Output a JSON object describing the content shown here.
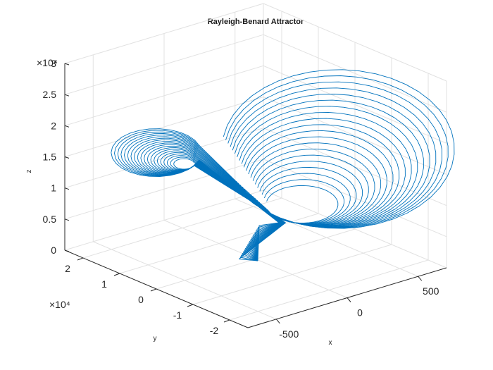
{
  "chart_data": {
    "type": "line",
    "title": "Rayleigh-Benard Attractor",
    "xlabel": "x",
    "ylabel": "y",
    "zlabel": "z",
    "xlim": [
      -700,
      700
    ],
    "ylim": [
      -25000,
      25000
    ],
    "zlim": [
      0,
      30000
    ],
    "x_ticks": [
      "-500",
      "0",
      "500"
    ],
    "y_ticks": [
      "2",
      "1",
      "0",
      "-1",
      "-2"
    ],
    "z_ticks": [
      "0",
      "0.5",
      "1",
      "1.5",
      "2",
      "2.5",
      "3"
    ],
    "y_exponent": "×10⁴",
    "z_exponent": "×10⁴",
    "grid": true,
    "view": "3-D",
    "series": [
      {
        "color": "#0072bd",
        "loops": 20,
        "lobe_center": [
          300,
          0,
          21000
        ],
        "lobe_radius": [
          320,
          9000
        ],
        "knot_upper": [
          -150,
          0,
          14500
        ],
        "knot_lower": [
          0,
          0,
          4500
        ],
        "apex": [
          -700,
          0,
          0
        ],
        "left_lobe_extreme": [
          -100,
          20000,
          20000
        ]
      }
    ]
  }
}
